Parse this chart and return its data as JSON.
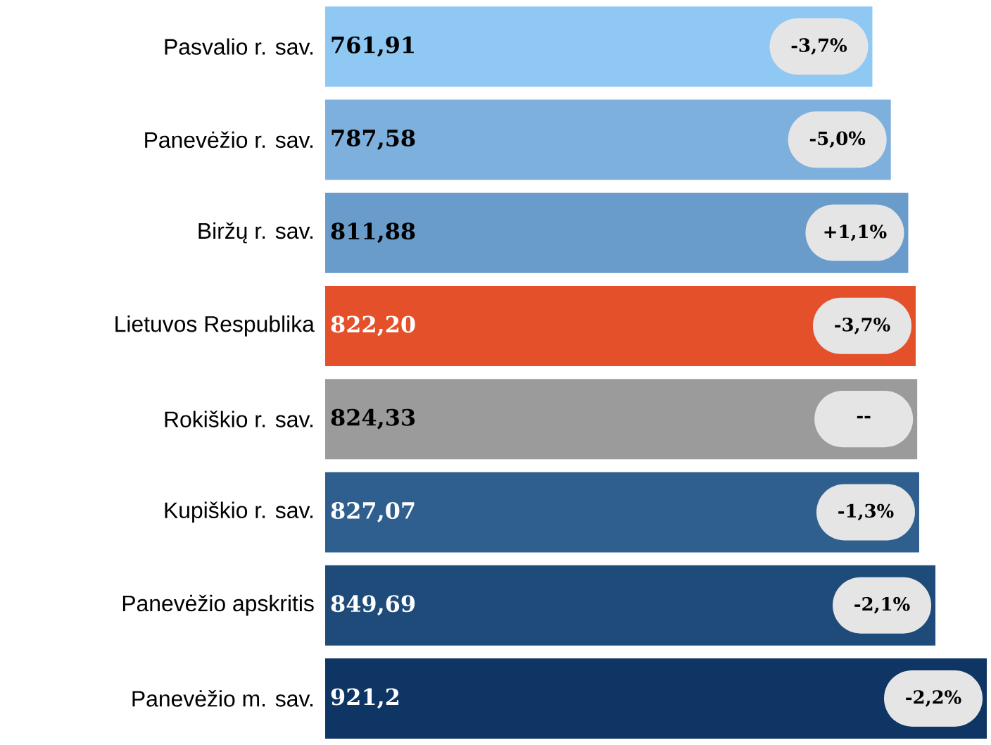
{
  "chart_data": {
    "type": "bar",
    "orientation": "horizontal",
    "categories": [
      "Pasvalio r. sav.",
      "Panevėžio r. sav.",
      "Biržų r. sav.",
      "Lietuvos Respublika",
      "Rokiškio r. sav.",
      "Kupiškio r. sav.",
      "Panevėžio apskritis",
      "Panevėžio m. sav."
    ],
    "values": [
      761.91,
      787.58,
      811.88,
      822.2,
      824.33,
      827.07,
      849.69,
      921.2
    ],
    "value_labels": [
      "761,91",
      "787,58",
      "811,88",
      "822,20",
      "824,33",
      "827,07",
      "849,69",
      "921,2"
    ],
    "colors": [
      "#90c8f4",
      "#7eb0de",
      "#6a9ccb",
      "#e4502a",
      "#9b9b9b",
      "#2e5f8e",
      "#1f4b7a",
      "#0e3563"
    ],
    "annotations": [
      {
        "text": "-3,7%",
        "x": 761.91,
        "y": "Pasvalio r. sav."
      },
      {
        "text": "-5,0%",
        "x": 787.58,
        "y": "Panevėžio r. sav."
      },
      {
        "text": "+1,1%",
        "x": 811.88,
        "y": "Biržų r. sav."
      },
      {
        "text": "-3,7%",
        "x": 822.2,
        "y": "Lietuvos Respublika"
      },
      {
        "text": "--",
        "x": 824.33,
        "y": "Rokiškio r. sav."
      },
      {
        "text": "-1,3%",
        "x": 827.07,
        "y": "Kupiškio r. sav."
      },
      {
        "text": "-2,1%",
        "x": 849.69,
        "y": "Panevėžio apskritis"
      },
      {
        "text": "-2,2%",
        "x": 921.2,
        "y": "Panevėžio m. sav."
      }
    ]
  }
}
